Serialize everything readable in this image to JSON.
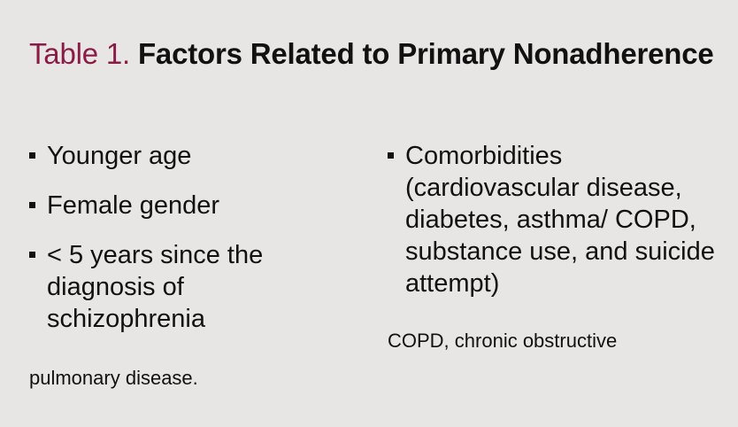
{
  "title": {
    "label": "Table 1.",
    "text": "Factors Related to Primary Nonadherence"
  },
  "left_items": [
    "Younger age",
    "Female gender",
    "< 5 years since the diagnosis of schizophrenia"
  ],
  "right_items": [
    "Comorbidities (cardiovascular disease, diabetes, asthma/ COPD, substance use, and suicide attempt)"
  ],
  "footnote": {
    "part1": "COPD, chronic obstructive",
    "part2": "pulmonary disease."
  },
  "colors": {
    "background": "#e7e6e4",
    "label_accent": "#8b1a47",
    "text": "#111111"
  }
}
